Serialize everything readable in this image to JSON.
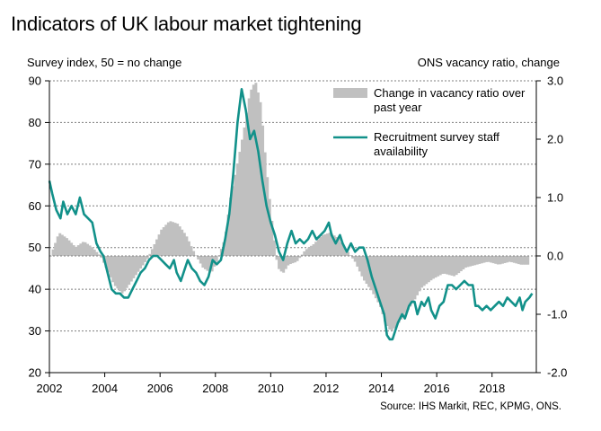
{
  "title": "Indicators of UK labour market tightening",
  "source": "Source: IHS Markit, REC, KPMG, ONS.",
  "chart_data": {
    "type": "line",
    "title": "Indicators of UK labour market tightening",
    "left_axis": {
      "label": "Survey index, 50 = no change",
      "range": [
        20,
        90
      ],
      "ticks": [
        20,
        30,
        40,
        50,
        60,
        70,
        80,
        90
      ]
    },
    "right_axis": {
      "label": "ONS vacancy ratio, change",
      "range": [
        -2.0,
        3.0
      ],
      "ticks": [
        -2.0,
        -1.0,
        0.0,
        1.0,
        2.0,
        3.0
      ],
      "tick_labels": [
        "-2.0",
        "-1.0",
        "0.0",
        "1.0",
        "2.0",
        "3.0"
      ]
    },
    "x_axis": {
      "range": [
        2002,
        2019.6
      ],
      "ticks": [
        2002,
        2004,
        2006,
        2008,
        2010,
        2012,
        2014,
        2016,
        2018
      ],
      "tick_labels": [
        "2002",
        "2004",
        "2006",
        "2008",
        "2010",
        "2012",
        "2014",
        "2016",
        "2018"
      ]
    },
    "grid": "horizontal dashed",
    "legend_position": "top-right",
    "colors": {
      "bars": "#c0c0c0",
      "line": "#12918a",
      "grid": "#7f7f7f"
    },
    "series": [
      {
        "name": "Change in vacancy ratio over past year",
        "type": "bar",
        "axis": "right",
        "points": [
          [
            2002.0,
            0.0
          ],
          [
            2002.3,
            0.4
          ],
          [
            2002.6,
            0.3
          ],
          [
            2002.9,
            0.15
          ],
          [
            2003.2,
            0.25
          ],
          [
            2003.5,
            0.15
          ],
          [
            2003.8,
            0.0
          ],
          [
            2004.0,
            -0.2
          ],
          [
            2004.3,
            -0.5
          ],
          [
            2004.6,
            -0.65
          ],
          [
            2004.9,
            -0.45
          ],
          [
            2005.2,
            -0.25
          ],
          [
            2005.5,
            -0.05
          ],
          [
            2005.8,
            0.25
          ],
          [
            2006.0,
            0.45
          ],
          [
            2006.3,
            0.6
          ],
          [
            2006.6,
            0.55
          ],
          [
            2006.9,
            0.35
          ],
          [
            2007.2,
            0.05
          ],
          [
            2007.5,
            -0.2
          ],
          [
            2007.8,
            -0.3
          ],
          [
            2008.0,
            -0.1
          ],
          [
            2008.3,
            0.3
          ],
          [
            2008.5,
            1.0
          ],
          [
            2008.8,
            1.7
          ],
          [
            2009.0,
            2.2
          ],
          [
            2009.2,
            2.8
          ],
          [
            2009.4,
            3.0
          ],
          [
            2009.6,
            2.6
          ],
          [
            2009.8,
            1.5
          ],
          [
            2010.0,
            0.6
          ],
          [
            2010.2,
            -0.2
          ],
          [
            2010.4,
            -0.3
          ],
          [
            2010.6,
            -0.15
          ],
          [
            2010.9,
            -0.1
          ],
          [
            2011.2,
            0.1
          ],
          [
            2011.5,
            0.2
          ],
          [
            2011.8,
            0.35
          ],
          [
            2012.1,
            0.4
          ],
          [
            2012.4,
            0.3
          ],
          [
            2012.7,
            0.1
          ],
          [
            2013.0,
            -0.1
          ],
          [
            2013.3,
            -0.4
          ],
          [
            2013.6,
            -0.6
          ],
          [
            2013.9,
            -0.85
          ],
          [
            2014.1,
            -1.15
          ],
          [
            2014.3,
            -1.3
          ],
          [
            2014.5,
            -1.2
          ],
          [
            2014.8,
            -1.0
          ],
          [
            2015.1,
            -0.8
          ],
          [
            2015.4,
            -0.55
          ],
          [
            2015.8,
            -0.4
          ],
          [
            2016.2,
            -0.3
          ],
          [
            2016.6,
            -0.35
          ],
          [
            2017.0,
            -0.2
          ],
          [
            2017.4,
            -0.15
          ],
          [
            2017.8,
            -0.1
          ],
          [
            2018.2,
            -0.15
          ],
          [
            2018.6,
            -0.1
          ],
          [
            2019.0,
            -0.15
          ],
          [
            2019.3,
            -0.15
          ]
        ]
      },
      {
        "name": "Recruitment survey staff availability",
        "type": "line",
        "axis": "left",
        "points": [
          [
            2002.0,
            66
          ],
          [
            2002.1,
            63
          ],
          [
            2002.25,
            59
          ],
          [
            2002.4,
            57
          ],
          [
            2002.5,
            61
          ],
          [
            2002.65,
            58
          ],
          [
            2002.8,
            60
          ],
          [
            2002.95,
            58
          ],
          [
            2003.1,
            62
          ],
          [
            2003.25,
            58
          ],
          [
            2003.4,
            57
          ],
          [
            2003.55,
            56
          ],
          [
            2003.7,
            51
          ],
          [
            2003.85,
            49
          ],
          [
            2003.95,
            48
          ],
          [
            2004.1,
            44
          ],
          [
            2004.25,
            40
          ],
          [
            2004.4,
            39
          ],
          [
            2004.55,
            39
          ],
          [
            2004.7,
            38
          ],
          [
            2004.85,
            38
          ],
          [
            2005.0,
            40
          ],
          [
            2005.15,
            42
          ],
          [
            2005.3,
            44
          ],
          [
            2005.45,
            45
          ],
          [
            2005.6,
            47
          ],
          [
            2005.75,
            48
          ],
          [
            2005.9,
            48
          ],
          [
            2006.05,
            47
          ],
          [
            2006.2,
            46
          ],
          [
            2006.35,
            45
          ],
          [
            2006.5,
            47
          ],
          [
            2006.6,
            44
          ],
          [
            2006.75,
            42
          ],
          [
            2006.9,
            45
          ],
          [
            2007.0,
            47
          ],
          [
            2007.15,
            45
          ],
          [
            2007.3,
            44
          ],
          [
            2007.45,
            42
          ],
          [
            2007.6,
            41
          ],
          [
            2007.75,
            43
          ],
          [
            2007.9,
            47
          ],
          [
            2008.05,
            46
          ],
          [
            2008.2,
            47
          ],
          [
            2008.35,
            52
          ],
          [
            2008.5,
            58
          ],
          [
            2008.65,
            68
          ],
          [
            2008.8,
            80
          ],
          [
            2008.95,
            88
          ],
          [
            2009.1,
            83
          ],
          [
            2009.25,
            76
          ],
          [
            2009.4,
            78
          ],
          [
            2009.55,
            73
          ],
          [
            2009.7,
            66
          ],
          [
            2009.85,
            60
          ],
          [
            2010.0,
            56
          ],
          [
            2010.15,
            53
          ],
          [
            2010.3,
            49
          ],
          [
            2010.45,
            47
          ],
          [
            2010.6,
            51
          ],
          [
            2010.75,
            54
          ],
          [
            2010.9,
            51
          ],
          [
            2011.05,
            52
          ],
          [
            2011.2,
            51
          ],
          [
            2011.35,
            52
          ],
          [
            2011.5,
            54
          ],
          [
            2011.65,
            52
          ],
          [
            2011.8,
            53
          ],
          [
            2011.95,
            54
          ],
          [
            2012.1,
            56
          ],
          [
            2012.2,
            53
          ],
          [
            2012.35,
            51
          ],
          [
            2012.5,
            53
          ],
          [
            2012.6,
            51
          ],
          [
            2012.75,
            49
          ],
          [
            2012.9,
            51
          ],
          [
            2013.05,
            49
          ],
          [
            2013.2,
            50
          ],
          [
            2013.35,
            50
          ],
          [
            2013.5,
            47
          ],
          [
            2013.65,
            43
          ],
          [
            2013.8,
            40
          ],
          [
            2013.95,
            37
          ],
          [
            2014.1,
            34
          ],
          [
            2014.2,
            29
          ],
          [
            2014.3,
            28
          ],
          [
            2014.4,
            28
          ],
          [
            2014.5,
            30
          ],
          [
            2014.6,
            32
          ],
          [
            2014.75,
            34
          ],
          [
            2014.85,
            33
          ],
          [
            2015.0,
            36
          ],
          [
            2015.1,
            37
          ],
          [
            2015.2,
            37
          ],
          [
            2015.3,
            34
          ],
          [
            2015.45,
            37
          ],
          [
            2015.55,
            36
          ],
          [
            2015.7,
            38
          ],
          [
            2015.8,
            35
          ],
          [
            2015.95,
            33
          ],
          [
            2016.1,
            36
          ],
          [
            2016.25,
            37
          ],
          [
            2016.4,
            41
          ],
          [
            2016.55,
            41
          ],
          [
            2016.7,
            40
          ],
          [
            2016.85,
            41
          ],
          [
            2017.0,
            42
          ],
          [
            2017.15,
            41
          ],
          [
            2017.3,
            41
          ],
          [
            2017.4,
            36
          ],
          [
            2017.5,
            36
          ],
          [
            2017.65,
            35
          ],
          [
            2017.8,
            36
          ],
          [
            2017.95,
            35
          ],
          [
            2018.1,
            36
          ],
          [
            2018.25,
            37
          ],
          [
            2018.4,
            36
          ],
          [
            2018.55,
            38
          ],
          [
            2018.7,
            37
          ],
          [
            2018.85,
            36
          ],
          [
            2019.0,
            38
          ],
          [
            2019.1,
            35
          ],
          [
            2019.2,
            37
          ],
          [
            2019.35,
            38
          ],
          [
            2019.45,
            39
          ]
        ]
      }
    ]
  }
}
